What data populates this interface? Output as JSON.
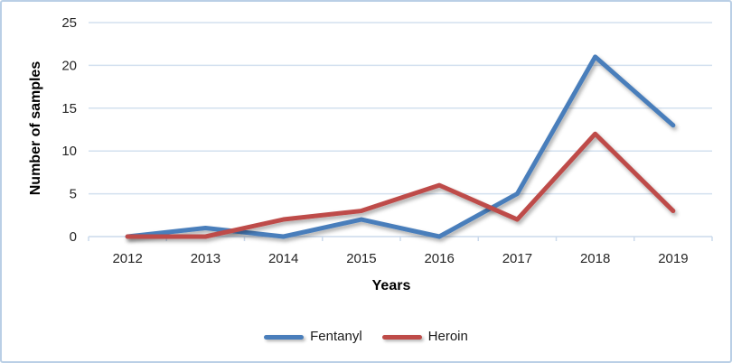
{
  "chart_data": {
    "type": "line",
    "title": "",
    "categories": [
      "2012",
      "2013",
      "2014",
      "2015",
      "2016",
      "2017",
      "2018",
      "2019"
    ],
    "series": [
      {
        "name": "Fentanyl",
        "color": "#4A7EBB",
        "values": [
          0,
          1,
          0,
          2,
          0,
          5,
          21,
          13
        ]
      },
      {
        "name": "Heroin",
        "color": "#BE4B48",
        "values": [
          0,
          0,
          2,
          3,
          6,
          2,
          12,
          3
        ]
      }
    ],
    "xlabel": "Years",
    "ylabel": "Number of samples",
    "ylim": [
      0,
      25
    ],
    "yticks": [
      0,
      5,
      10,
      15,
      20,
      25
    ],
    "grid": "horizontal",
    "legend_position": "bottom"
  },
  "colors": {
    "gridline": "#D3E0EF",
    "axis_line": "#CBDAEC",
    "frame_border": "#BACFE6",
    "tick_label": "#262626",
    "background": "#FFFFFF"
  }
}
